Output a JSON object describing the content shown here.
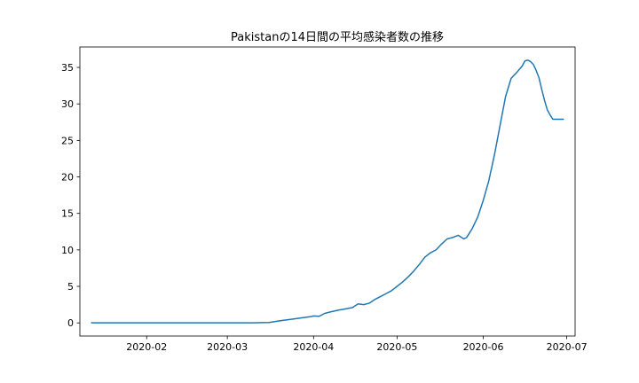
{
  "chart_data": {
    "type": "line",
    "title": "Pakistanの14日間の平均感染者数の推移",
    "xlabel": "",
    "ylabel": "",
    "grid": false,
    "xlim": [
      "2020-01-08",
      "2020-07-04"
    ],
    "ylim": [
      -1.8,
      37.8
    ],
    "x_ticks": [
      "2020-02",
      "2020-03",
      "2020-04",
      "2020-05",
      "2020-06",
      "2020-07"
    ],
    "y_ticks": [
      0,
      5,
      10,
      15,
      20,
      25,
      30,
      35
    ],
    "line_color": "#1f77b4",
    "series": [
      {
        "x": [
          "2020-01-12",
          "2020-02-01",
          "2020-03-01",
          "2020-03-10",
          "2020-03-16",
          "2020-03-20",
          "2020-03-24",
          "2020-03-28",
          "2020-03-31",
          "2020-04-01",
          "2020-04-03",
          "2020-04-05",
          "2020-04-07",
          "2020-04-10",
          "2020-04-13",
          "2020-04-15",
          "2020-04-17",
          "2020-04-19",
          "2020-04-21",
          "2020-04-23",
          "2020-04-25",
          "2020-04-27",
          "2020-04-29",
          "2020-05-01",
          "2020-05-03",
          "2020-05-05",
          "2020-05-07",
          "2020-05-09",
          "2020-05-11",
          "2020-05-13",
          "2020-05-15",
          "2020-05-17",
          "2020-05-19",
          "2020-05-21",
          "2020-05-23",
          "2020-05-25",
          "2020-05-26",
          "2020-05-27",
          "2020-05-28",
          "2020-05-30",
          "2020-06-01",
          "2020-06-03",
          "2020-06-05",
          "2020-06-07",
          "2020-06-09",
          "2020-06-11",
          "2020-06-13",
          "2020-06-15",
          "2020-06-16",
          "2020-06-17",
          "2020-06-18",
          "2020-06-19",
          "2020-06-20",
          "2020-06-21",
          "2020-06-22",
          "2020-06-23",
          "2020-06-24",
          "2020-06-25",
          "2020-06-26",
          "2020-06-27",
          "2020-06-28",
          "2020-06-29",
          "2020-06-30"
        ],
        "y": [
          0,
          0,
          0,
          0,
          0.05,
          0.3,
          0.5,
          0.7,
          0.85,
          0.95,
          0.9,
          1.3,
          1.5,
          1.75,
          1.95,
          2.1,
          2.6,
          2.5,
          2.7,
          3.2,
          3.6,
          4.0,
          4.4,
          5.0,
          5.6,
          6.3,
          7.1,
          8.0,
          9.0,
          9.6,
          10.0,
          10.8,
          11.5,
          11.7,
          12.0,
          11.5,
          11.7,
          12.3,
          12.9,
          14.5,
          16.8,
          19.5,
          23.0,
          27.0,
          31.0,
          33.5,
          34.3,
          35.2,
          35.9,
          36.0,
          35.8,
          35.4,
          34.6,
          33.6,
          32.0,
          30.5,
          29.2,
          28.5,
          27.9,
          27.9,
          27.9,
          27.9,
          27.9
        ]
      }
    ]
  }
}
